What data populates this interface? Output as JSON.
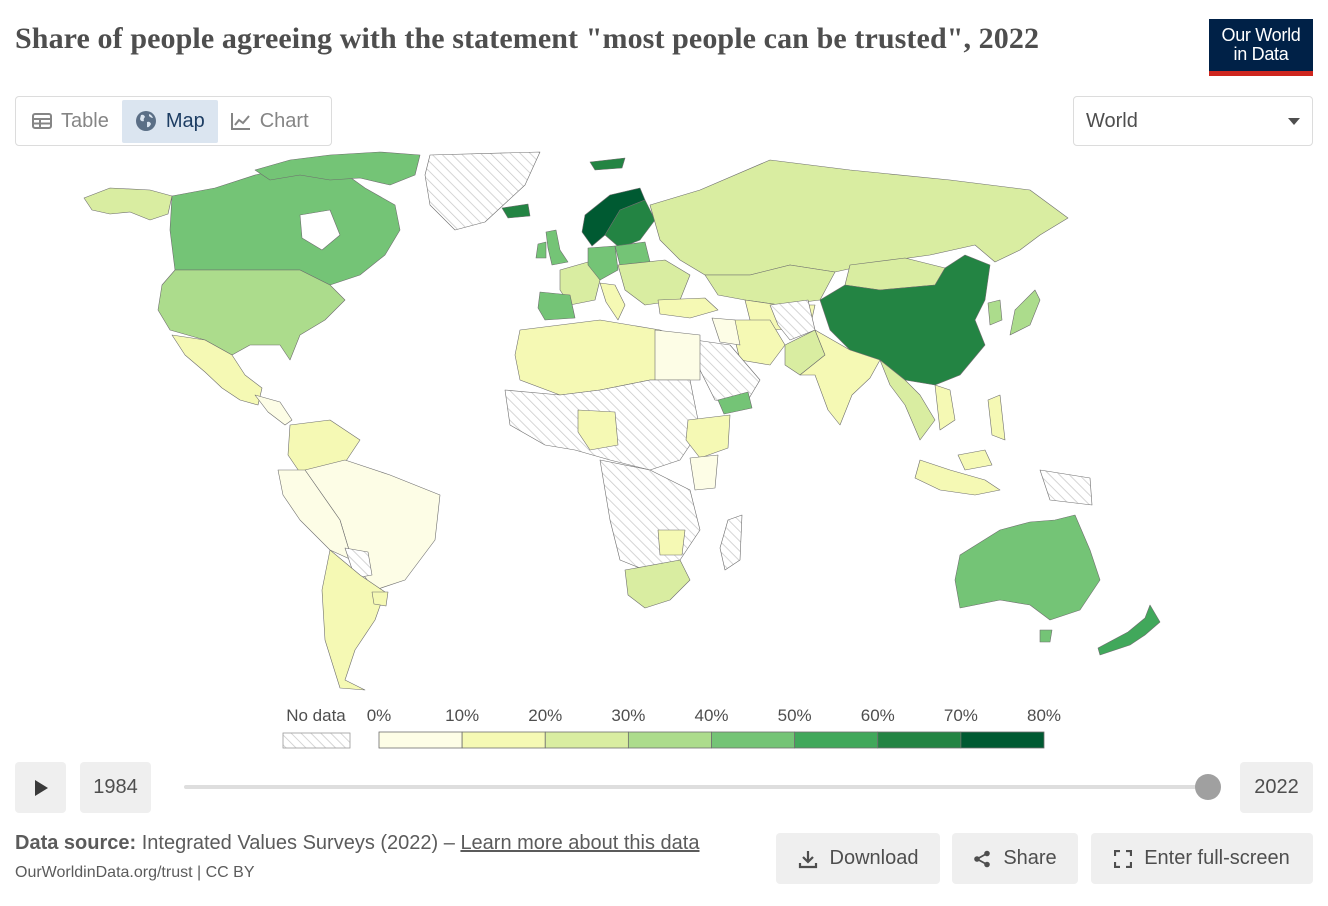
{
  "title": "Share of people agreeing with the statement \"most people can be trusted\", 2022",
  "logo": {
    "line1": "Our World",
    "line2": "in Data"
  },
  "tabs": [
    {
      "label": "Table",
      "icon": "table-icon",
      "active": false
    },
    {
      "label": "Map",
      "icon": "globe-icon",
      "active": true
    },
    {
      "label": "Chart",
      "icon": "line-chart-icon",
      "active": false
    }
  ],
  "region_select": {
    "value": "World"
  },
  "legend": {
    "no_data_label": "No data",
    "bins": [
      "0%",
      "10%",
      "20%",
      "30%",
      "40%",
      "50%",
      "60%",
      "70%",
      "80%"
    ],
    "colors": [
      "#fdfde6",
      "#f5f9b4",
      "#d9eda1",
      "#acdc8c",
      "#74c476",
      "#41a85b",
      "#238443",
      "#005a32"
    ],
    "no_data_color": "#ffffff"
  },
  "timeline": {
    "start_year": "1984",
    "end_year": "2022",
    "position": 1.0
  },
  "footer": {
    "source_label": "Data source:",
    "source_text": "Integrated Values Surveys (2022) –",
    "source_link": "Learn more about this data",
    "credit": "OurWorldinData.org/trust | CC BY"
  },
  "actions": {
    "download": "Download",
    "share": "Share",
    "fullscreen": "Enter full-screen"
  }
}
